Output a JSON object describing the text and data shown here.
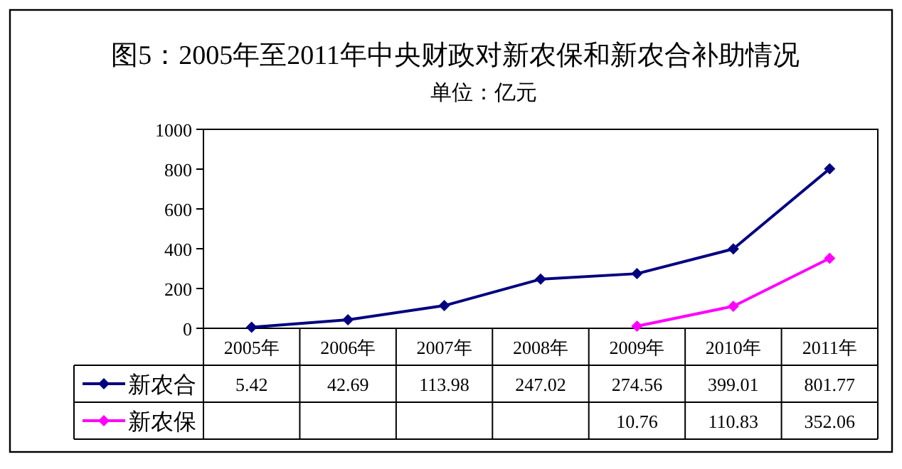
{
  "chart_data": {
    "type": "line",
    "title": "图5：2005年至2011年中央财政对新农保和新农合补助情况",
    "subtitle": "单位：亿元",
    "categories": [
      "2005年",
      "2006年",
      "2007年",
      "2008年",
      "2009年",
      "2010年",
      "2011年"
    ],
    "series": [
      {
        "name": "新农合",
        "color": "#000080",
        "values": [
          5.42,
          42.69,
          113.98,
          247.02,
          274.56,
          399.01,
          801.77
        ]
      },
      {
        "name": "新农保",
        "color": "#ff00ff",
        "values": [
          null,
          null,
          null,
          null,
          10.76,
          110.83,
          352.06
        ]
      }
    ],
    "ylim": [
      0,
      1000
    ],
    "yticks": [
      0,
      200,
      400,
      600,
      800,
      1000
    ],
    "marker": "diamond",
    "line_style": "solid",
    "grid": false,
    "legend": "bottom left",
    "data_labels": true
  }
}
